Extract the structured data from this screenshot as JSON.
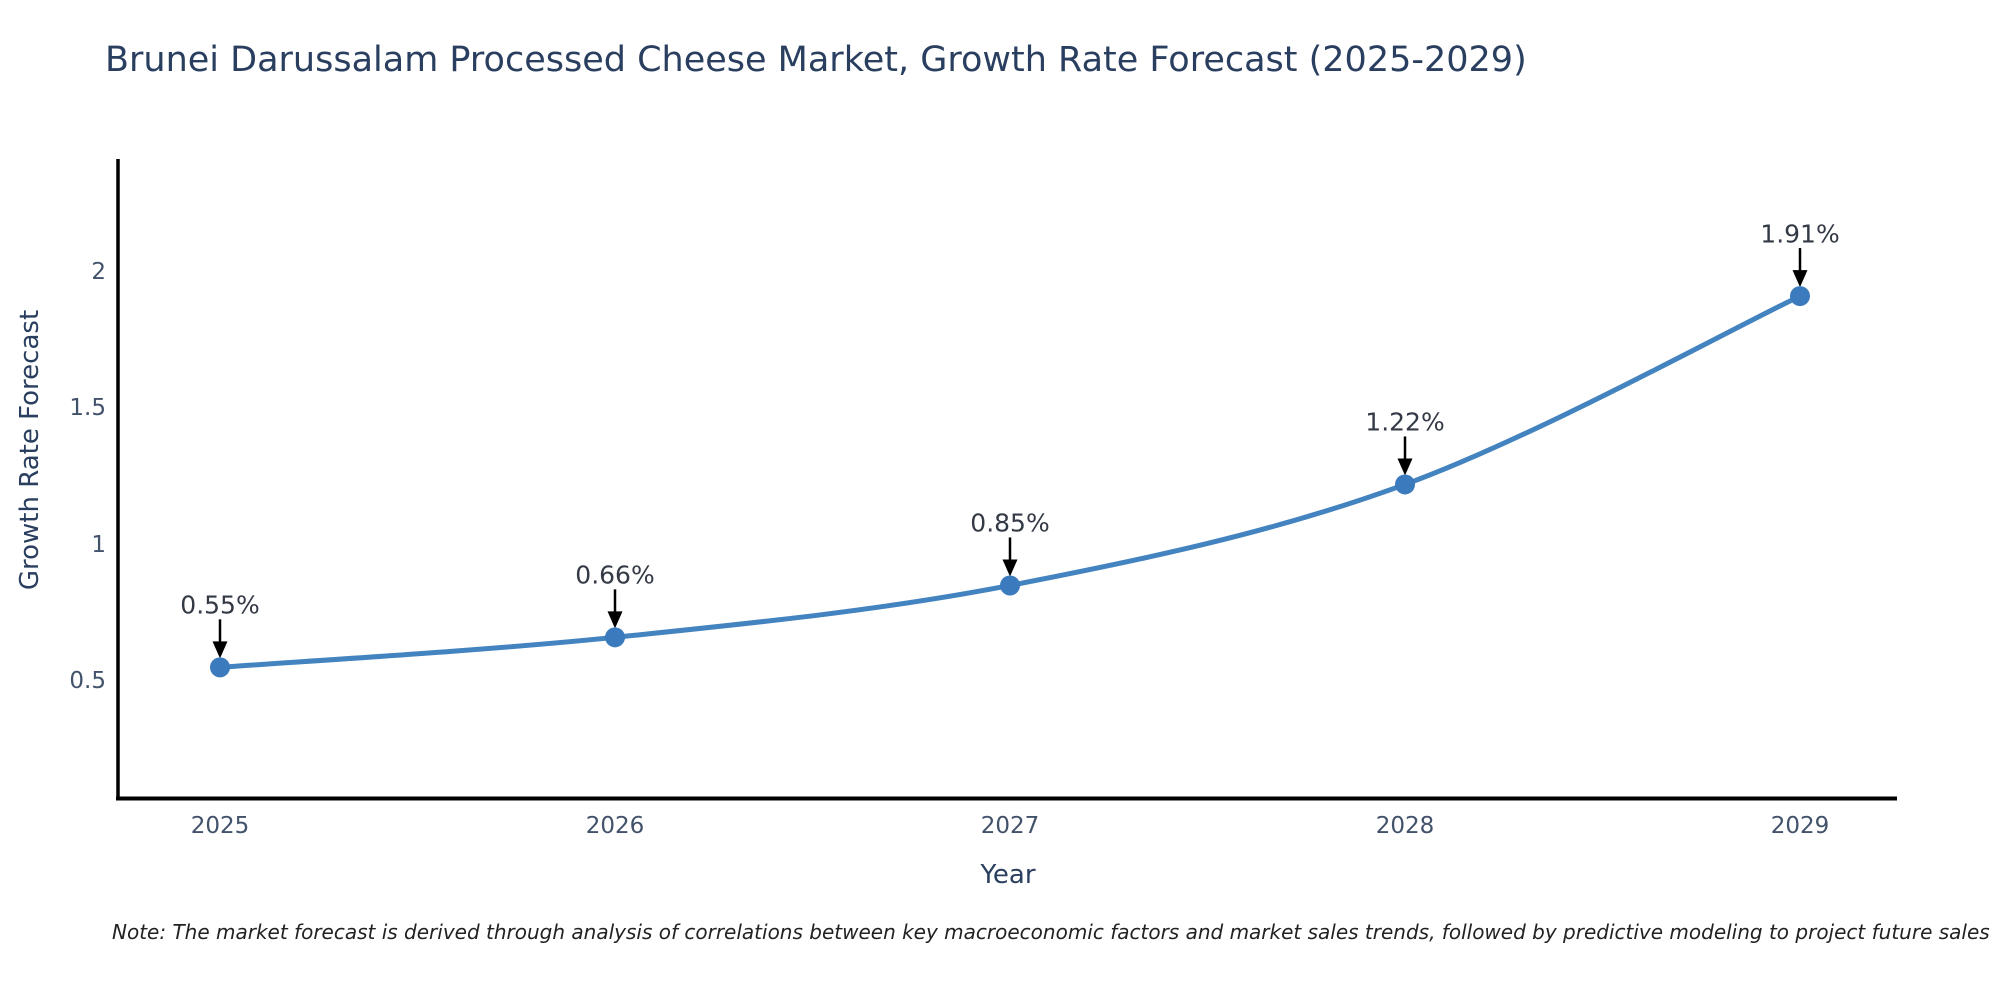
{
  "chart": {
    "title": "Brunei Darussalam Processed Cheese Market, Growth Rate Forecast (2025-2029)",
    "note": "Note: The market forecast is derived through analysis of correlations between key macroeconomic factors and market sales trends, followed by predictive modeling to project future sales"
  },
  "chart_data": {
    "type": "line",
    "title": "Brunei Darussalam Processed Cheese Market, Growth Rate Forecast (2025-2029)",
    "categories": [
      "2025",
      "2026",
      "2027",
      "2028",
      "2029"
    ],
    "series": [
      {
        "name": "Growth Rate Forecast",
        "values": [
          0.55,
          0.66,
          0.85,
          1.22,
          1.91
        ]
      }
    ],
    "labels": [
      "0.55%",
      "0.66%",
      "0.85%",
      "1.22%",
      "1.91%"
    ],
    "xlabel": "Year",
    "ylabel": "Growth Rate Forecast",
    "y_ticks": [
      "0.5",
      "1",
      "1.5",
      "2"
    ],
    "y_tick_values": [
      0.5,
      1,
      1.5,
      2
    ],
    "ylim": [
      0.07,
      2.43
    ],
    "grid": false,
    "legend_position": "none",
    "line_shape": "spline",
    "line_color": "#4383bf",
    "marker_color": "#3a7abd",
    "axis_color": "#000000",
    "arrow_color": "#000000"
  }
}
